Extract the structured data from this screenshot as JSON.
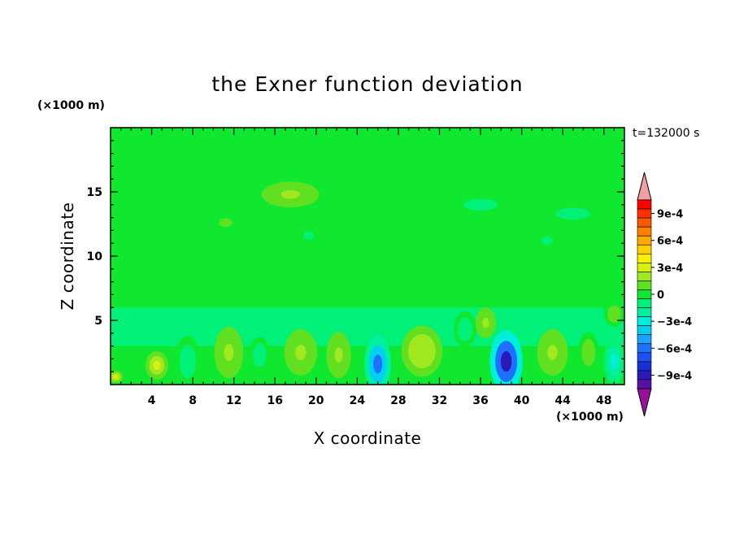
{
  "chart_data": {
    "type": "heatmap",
    "title": "the Exner function deviation",
    "xlabel": "X coordinate",
    "ylabel": "Z coordinate",
    "x_unit_label": "(×1000 m)",
    "y_unit_label": "(×1000 m)",
    "time_label": "t=132000 s",
    "xlim": [
      0,
      50
    ],
    "ylim": [
      0,
      20
    ],
    "x_ticks": [
      4,
      8,
      12,
      16,
      20,
      24,
      28,
      32,
      36,
      40,
      44,
      48
    ],
    "x_tick_labels": [
      "4",
      "8",
      "12",
      "16",
      "20",
      "24",
      "28",
      "32",
      "36",
      "40",
      "44",
      "48"
    ],
    "y_ticks": [
      5,
      10,
      15
    ],
    "y_tick_labels": [
      "5",
      "10",
      "15"
    ],
    "colorbar": {
      "levels": [
        -0.0011,
        -0.001,
        -0.0009,
        -0.0008,
        -0.0007,
        -0.0006,
        -0.0005,
        -0.0004,
        -0.0003,
        -0.0002,
        -0.0001,
        0,
        0.0001,
        0.0002,
        0.0003,
        0.0004,
        0.0005,
        0.0006,
        0.0007,
        0.0008,
        0.0009,
        0.001,
        0.0011
      ],
      "colors": [
        "#9a109a",
        "#5a10a8",
        "#2a18b8",
        "#1830d8",
        "#1e50ee",
        "#1e70ff",
        "#1ea0ff",
        "#00d0f0",
        "#00eedc",
        "#00f0a0",
        "#00f078",
        "#10e830",
        "#60e020",
        "#a0e820",
        "#d8f010",
        "#f8f000",
        "#ffd000",
        "#ffa800",
        "#ff8000",
        "#ff5800",
        "#ff3000",
        "#ff0000",
        "#f0a0a0"
      ],
      "tick_values": [
        0.0009,
        0.0006,
        0.0003,
        0,
        -0.0003,
        -0.0006,
        -0.0009
      ],
      "tick_labels": [
        "9e-4",
        "6e-4",
        "3e-4",
        "0",
        "−3e-4",
        "−6e-4",
        "−9e-4"
      ]
    },
    "bands": [
      {
        "z0": 16,
        "z1": 20,
        "value": 5e-05
      },
      {
        "z0": 12,
        "z1": 16,
        "value": -3e-05
      },
      {
        "z0": 6,
        "z1": 12,
        "value": 5e-05
      },
      {
        "z0": 3,
        "z1": 6,
        "value": -0.00012
      }
    ],
    "features": [
      {
        "x": 17.5,
        "z": 14.8,
        "rx": 2.8,
        "rz": 1.0,
        "value": 0.00018
      },
      {
        "x": 11.2,
        "z": 12.6,
        "rx": 1.0,
        "rz": 0.5,
        "value": 0.00015
      },
      {
        "x": 19.3,
        "z": 11.6,
        "rx": 0.8,
        "rz": 0.5,
        "value": -0.00015
      },
      {
        "x": 36,
        "z": 14.0,
        "rx": 2.5,
        "rz": 0.7,
        "value": -0.0001
      },
      {
        "x": 45,
        "z": 13.3,
        "rx": 2.5,
        "rz": 0.7,
        "value": -0.00012
      },
      {
        "x": 42.5,
        "z": 11.2,
        "rx": 0.8,
        "rz": 0.5,
        "value": -0.00015
      },
      {
        "x": 0.5,
        "z": 0.6,
        "rx": 0.7,
        "rz": 0.5,
        "value": 0.00035
      },
      {
        "x": 4.5,
        "z": 1.5,
        "rx": 1.1,
        "rz": 1.1,
        "value": 0.00028
      },
      {
        "x": 7.5,
        "z": 1.8,
        "rx": 1.2,
        "rz": 2.0,
        "value": -0.00015
      },
      {
        "x": 11.5,
        "z": 2.5,
        "rx": 1.4,
        "rz": 2.0,
        "value": 0.0002
      },
      {
        "x": 14.5,
        "z": 2.3,
        "rx": 1.0,
        "rz": 1.4,
        "value": -0.0001
      },
      {
        "x": 18.5,
        "z": 2.5,
        "rx": 1.6,
        "rz": 1.8,
        "value": 0.00022
      },
      {
        "x": 22.2,
        "z": 2.3,
        "rx": 1.2,
        "rz": 1.8,
        "value": 0.00022
      },
      {
        "x": 26,
        "z": 1.6,
        "rx": 1.3,
        "rz": 2.2,
        "value": -0.0006
      },
      {
        "x": 30.3,
        "z": 2.6,
        "rx": 2.0,
        "rz": 2.0,
        "value": 0.00024
      },
      {
        "x": 34.5,
        "z": 4.3,
        "rx": 1.1,
        "rz": 1.4,
        "value": -0.00015
      },
      {
        "x": 36.5,
        "z": 4.8,
        "rx": 1.0,
        "rz": 1.2,
        "value": 0.0002
      },
      {
        "x": 38.5,
        "z": 1.8,
        "rx": 1.6,
        "rz": 2.4,
        "value": -0.0009
      },
      {
        "x": 43,
        "z": 2.5,
        "rx": 1.5,
        "rz": 1.8,
        "value": 0.00022
      },
      {
        "x": 46.5,
        "z": 2.5,
        "rx": 1.0,
        "rz": 1.6,
        "value": 0.00015
      },
      {
        "x": 49,
        "z": 1.8,
        "rx": 1.0,
        "rz": 1.8,
        "value": -0.00025
      },
      {
        "x": 49,
        "z": 5.5,
        "rx": 1.0,
        "rz": 1.0,
        "value": 0.00015
      }
    ]
  }
}
